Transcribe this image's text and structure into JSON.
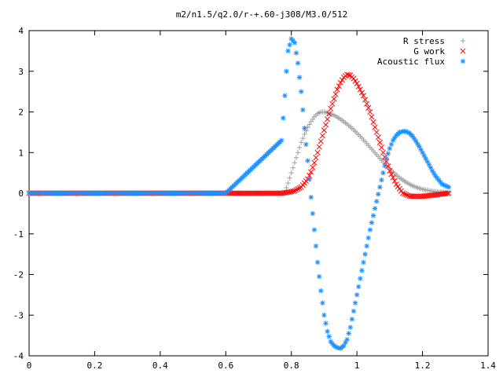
{
  "chart_data": {
    "type": "scatter",
    "title": "m2/n1.5/q2.0/r-+.60-j308/M3.0/512",
    "xlabel": "",
    "ylabel": "",
    "xlim": [
      0,
      1.4
    ],
    "ylim": [
      -4,
      4
    ],
    "xticks": [
      "0",
      "0.2",
      "0.4",
      "0.6",
      "0.8",
      "1",
      "1.2",
      "1.4"
    ],
    "yticks": [
      "4",
      "3",
      "2",
      "1",
      "0",
      "-1",
      "-2",
      "-3",
      "-4"
    ],
    "grid": false,
    "legend_position": "top-right",
    "series": [
      {
        "name": "R stress",
        "marker": "+",
        "color": "#a0a0a0",
        "points": [
          [
            0.0,
            0
          ],
          [
            0.2,
            0
          ],
          [
            0.4,
            0
          ],
          [
            0.6,
            0
          ],
          [
            0.77,
            0
          ],
          [
            0.78,
            0.02
          ],
          [
            0.79,
            0.25
          ],
          [
            0.8,
            0.5
          ],
          [
            0.81,
            0.75
          ],
          [
            0.82,
            1.0
          ],
          [
            0.83,
            1.25
          ],
          [
            0.84,
            1.45
          ],
          [
            0.85,
            1.62
          ],
          [
            0.86,
            1.76
          ],
          [
            0.87,
            1.88
          ],
          [
            0.88,
            1.96
          ],
          [
            0.89,
            2.0
          ],
          [
            0.9,
            2.0
          ],
          [
            0.91,
            1.98
          ],
          [
            0.93,
            1.92
          ],
          [
            0.95,
            1.82
          ],
          [
            0.97,
            1.7
          ],
          [
            0.99,
            1.56
          ],
          [
            1.01,
            1.4
          ],
          [
            1.03,
            1.22
          ],
          [
            1.05,
            1.04
          ],
          [
            1.07,
            0.86
          ],
          [
            1.09,
            0.68
          ],
          [
            1.11,
            0.52
          ],
          [
            1.13,
            0.38
          ],
          [
            1.15,
            0.27
          ],
          [
            1.17,
            0.18
          ],
          [
            1.19,
            0.12
          ],
          [
            1.21,
            0.08
          ],
          [
            1.23,
            0.05
          ],
          [
            1.25,
            0.03
          ],
          [
            1.28,
            0.02
          ]
        ]
      },
      {
        "name": "G work",
        "marker": "x",
        "color": "#ff0000",
        "points": [
          [
            0.0,
            0
          ],
          [
            0.2,
            0
          ],
          [
            0.4,
            0
          ],
          [
            0.6,
            0
          ],
          [
            0.77,
            0
          ],
          [
            0.79,
            0.02
          ],
          [
            0.81,
            0.06
          ],
          [
            0.83,
            0.15
          ],
          [
            0.85,
            0.35
          ],
          [
            0.86,
            0.52
          ],
          [
            0.87,
            0.75
          ],
          [
            0.88,
            1.0
          ],
          [
            0.89,
            1.28
          ],
          [
            0.9,
            1.55
          ],
          [
            0.91,
            1.82
          ],
          [
            0.92,
            2.08
          ],
          [
            0.93,
            2.32
          ],
          [
            0.94,
            2.55
          ],
          [
            0.95,
            2.72
          ],
          [
            0.96,
            2.85
          ],
          [
            0.97,
            2.92
          ],
          [
            0.98,
            2.9
          ],
          [
            0.99,
            2.82
          ],
          [
            1.0,
            2.7
          ],
          [
            1.02,
            2.4
          ],
          [
            1.04,
            2.0
          ],
          [
            1.06,
            1.5
          ],
          [
            1.08,
            1.0
          ],
          [
            1.1,
            0.55
          ],
          [
            1.12,
            0.22
          ],
          [
            1.14,
            0.0
          ],
          [
            1.16,
            -0.07
          ],
          [
            1.19,
            -0.08
          ],
          [
            1.22,
            -0.06
          ],
          [
            1.25,
            -0.03
          ],
          [
            1.28,
            0.0
          ]
        ]
      },
      {
        "name": "Acoustic flux",
        "marker": "*",
        "color": "#1e90ff",
        "points": [
          [
            0.0,
            0
          ],
          [
            0.2,
            0
          ],
          [
            0.4,
            0
          ],
          [
            0.6,
            0
          ],
          [
            0.77,
            1.3
          ],
          [
            0.78,
            2.4
          ],
          [
            0.785,
            3.0
          ],
          [
            0.79,
            3.5
          ],
          [
            0.8,
            3.8
          ],
          [
            0.81,
            3.7
          ],
          [
            0.82,
            3.2
          ],
          [
            0.83,
            2.5
          ],
          [
            0.84,
            1.6
          ],
          [
            0.85,
            0.8
          ],
          [
            0.86,
            -0.1
          ],
          [
            0.87,
            -0.9
          ],
          [
            0.88,
            -1.7
          ],
          [
            0.89,
            -2.4
          ],
          [
            0.9,
            -3.0
          ],
          [
            0.91,
            -3.4
          ],
          [
            0.92,
            -3.65
          ],
          [
            0.93,
            -3.75
          ],
          [
            0.94,
            -3.8
          ],
          [
            0.95,
            -3.82
          ],
          [
            0.96,
            -3.75
          ],
          [
            0.97,
            -3.6
          ],
          [
            0.98,
            -3.3
          ],
          [
            0.99,
            -2.9
          ],
          [
            1.0,
            -2.5
          ],
          [
            1.01,
            -2.1
          ],
          [
            1.02,
            -1.7
          ],
          [
            1.03,
            -1.3
          ],
          [
            1.04,
            -0.9
          ],
          [
            1.05,
            -0.55
          ],
          [
            1.06,
            -0.2
          ],
          [
            1.07,
            0.15
          ],
          [
            1.08,
            0.5
          ],
          [
            1.09,
            0.85
          ],
          [
            1.1,
            1.1
          ],
          [
            1.11,
            1.3
          ],
          [
            1.12,
            1.42
          ],
          [
            1.13,
            1.5
          ],
          [
            1.14,
            1.52
          ],
          [
            1.15,
            1.52
          ],
          [
            1.16,
            1.48
          ],
          [
            1.17,
            1.4
          ],
          [
            1.18,
            1.28
          ],
          [
            1.19,
            1.15
          ],
          [
            1.2,
            1.0
          ],
          [
            1.21,
            0.85
          ],
          [
            1.22,
            0.7
          ],
          [
            1.23,
            0.55
          ],
          [
            1.24,
            0.42
          ],
          [
            1.25,
            0.32
          ],
          [
            1.26,
            0.22
          ],
          [
            1.28,
            0.15
          ]
        ]
      }
    ]
  }
}
